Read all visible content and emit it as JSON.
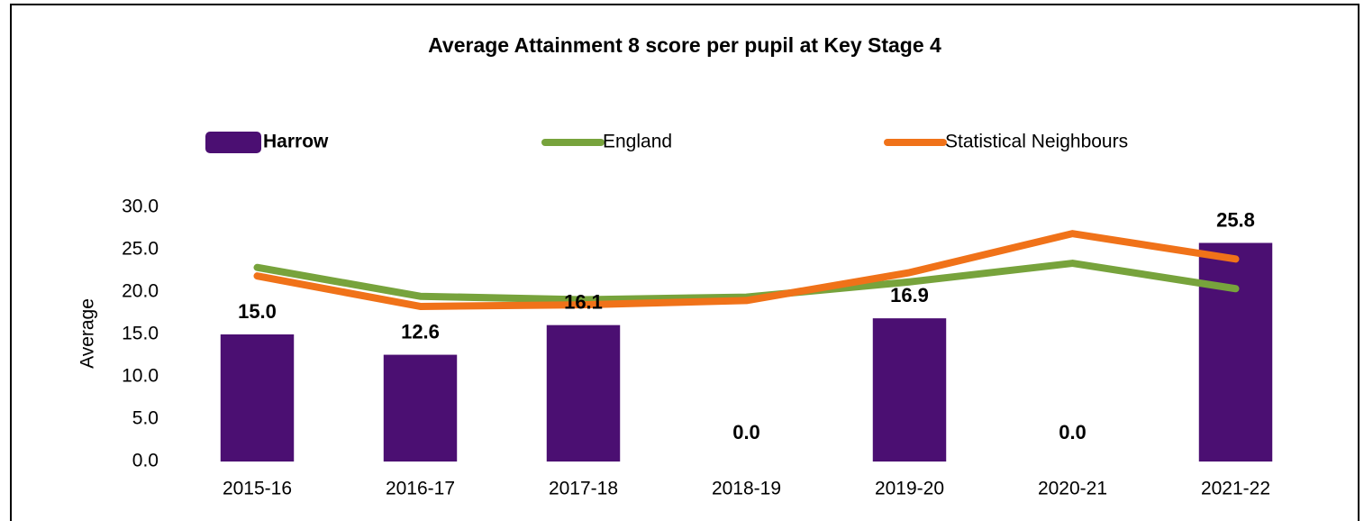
{
  "chart_data": {
    "type": "bar",
    "title": "Average Attainment 8 score per pupil at Key Stage 4",
    "y_label": "Average",
    "categories": [
      "2015-16",
      "2016-17",
      "2017-18",
      "2018-19",
      "2019-20",
      "2020-21",
      "2021-22"
    ],
    "series": [
      {
        "name": "Harrow",
        "type": "bar",
        "color": "#4b0f72",
        "values": [
          15.0,
          12.6,
          16.1,
          0.0,
          16.9,
          0.0,
          25.8
        ],
        "value_labels": [
          "15.0",
          "12.6",
          "16.1",
          "0.0",
          "16.9",
          "0.0",
          "25.8"
        ],
        "label_color": "#2e4f8c"
      },
      {
        "name": "England",
        "type": "line",
        "color": "#77a33c",
        "values": [
          22.9,
          19.5,
          19.1,
          19.4,
          21.2,
          23.4,
          20.4
        ]
      },
      {
        "name": "Statistical Neighbours",
        "type": "line",
        "color": "#f07219",
        "values": [
          21.9,
          18.3,
          18.5,
          19.0,
          22.3,
          26.9,
          23.9
        ]
      }
    ],
    "ylim": [
      0,
      30
    ],
    "yticks": [
      {
        "value": 0,
        "label": "0.0"
      },
      {
        "value": 5,
        "label": "5.0"
      },
      {
        "value": 10,
        "label": "10.0"
      },
      {
        "value": 15,
        "label": "15.0"
      },
      {
        "value": 20,
        "label": "20.0"
      },
      {
        "value": 25,
        "label": "25.0"
      },
      {
        "value": 30,
        "label": "30.0"
      }
    ],
    "grid": false,
    "legend": "top"
  }
}
